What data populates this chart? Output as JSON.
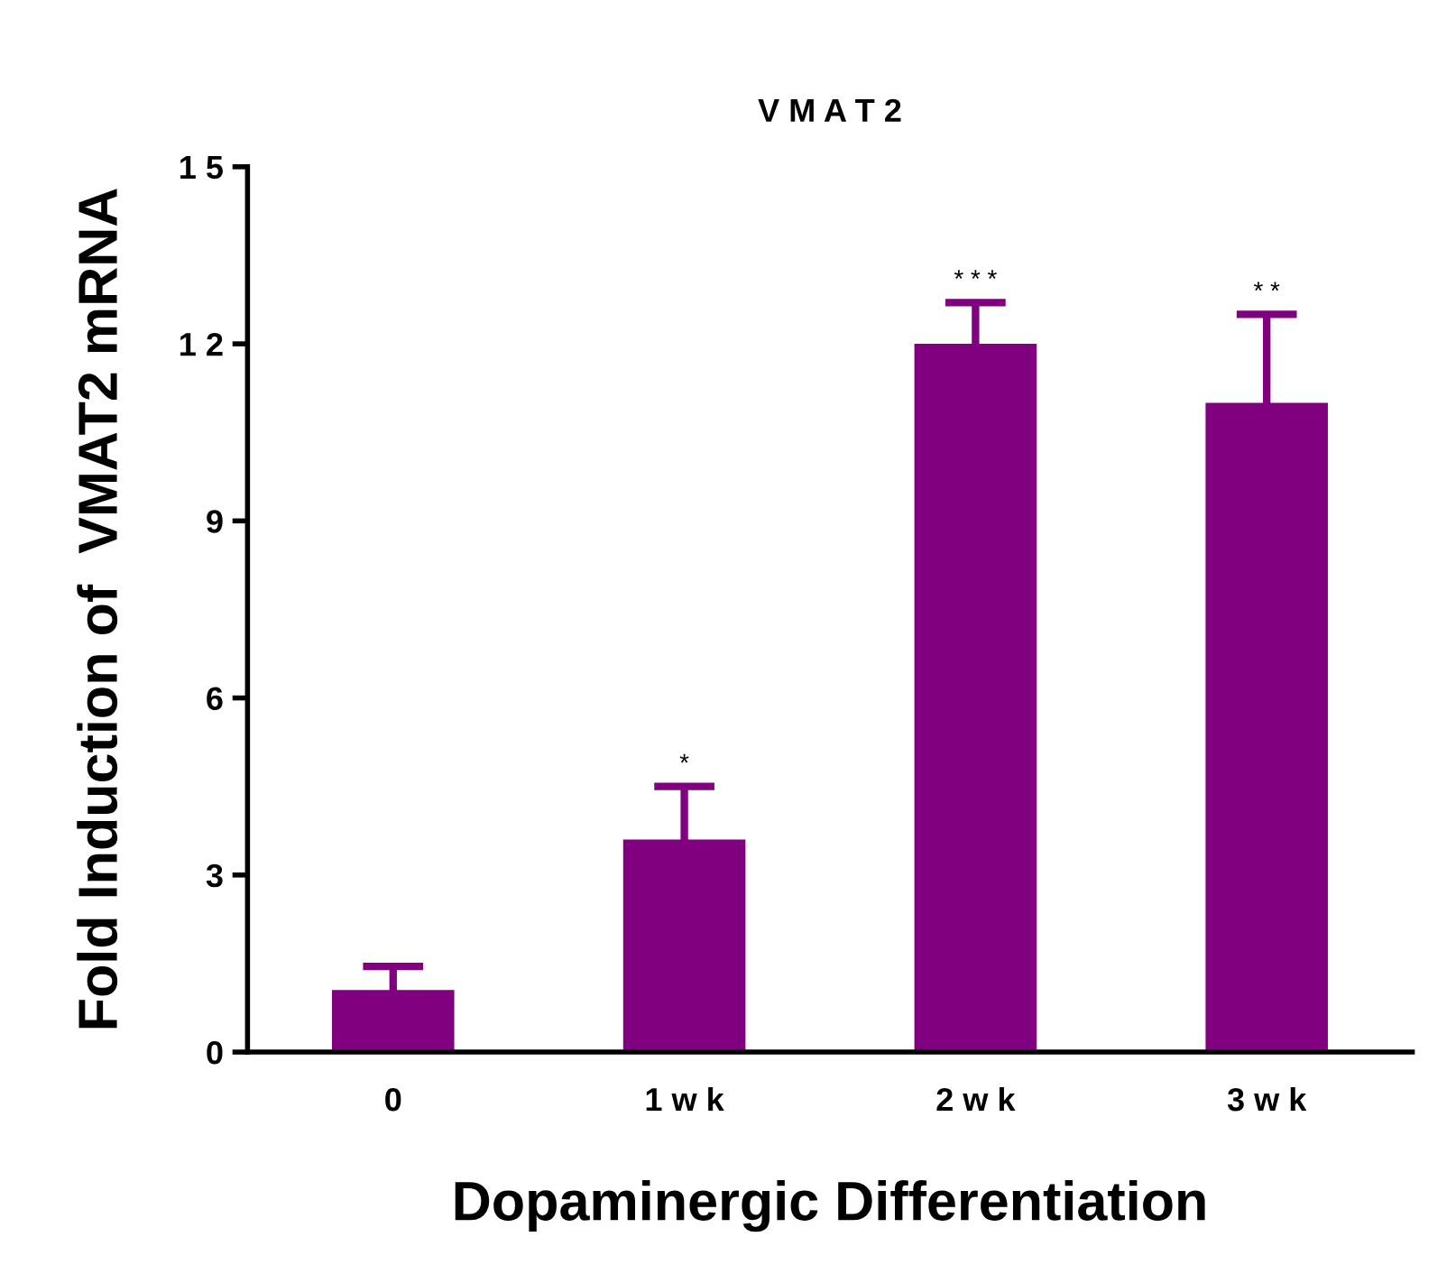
{
  "chart_data": {
    "type": "bar",
    "title": "V M A T 2",
    "xlabel": "Dopaminergic Differentiation",
    "ylabel": "Fold Induction of  VMAT2 mRNA",
    "categories": [
      "0",
      "1 w k",
      "2 w k",
      "3 w k"
    ],
    "values": [
      1.05,
      3.6,
      12.0,
      11.0
    ],
    "errors": [
      0.4,
      0.9,
      0.7,
      1.5
    ],
    "color": "#800080",
    "ylim": [
      0,
      15
    ],
    "yticks": [
      0,
      3,
      6,
      9,
      {
        "value": 12,
        "label": "1 2"
      },
      {
        "value": 15,
        "label": "1 5"
      }
    ],
    "grid": false,
    "annotations": [
      "*",
      "* * *",
      "* *"
    ]
  }
}
